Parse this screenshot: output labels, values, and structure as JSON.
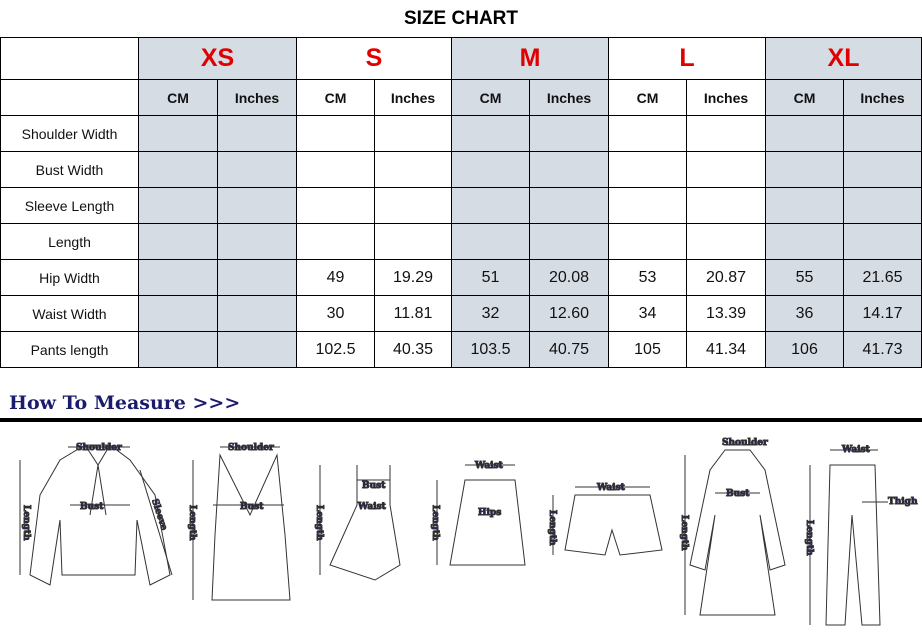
{
  "title": "SIZE CHART",
  "sizes": [
    "XS",
    "S",
    "M",
    "L",
    "XL"
  ],
  "units": [
    "CM",
    "Inches"
  ],
  "rows": [
    {
      "label": "Shoulder Width",
      "values": [
        "",
        "",
        "",
        "",
        "",
        "",
        "",
        "",
        "",
        ""
      ]
    },
    {
      "label": "Bust Width",
      "values": [
        "",
        "",
        "",
        "",
        "",
        "",
        "",
        "",
        "",
        ""
      ]
    },
    {
      "label": "Sleeve Length",
      "values": [
        "",
        "",
        "",
        "",
        "",
        "",
        "",
        "",
        "",
        ""
      ]
    },
    {
      "label": "Length",
      "values": [
        "",
        "",
        "",
        "",
        "",
        "",
        "",
        "",
        "",
        ""
      ]
    },
    {
      "label": "Hip Width",
      "values": [
        "",
        "",
        "49",
        "19.29",
        "51",
        "20.08",
        "53",
        "20.87",
        "55",
        "21.65"
      ]
    },
    {
      "label": "Waist Width",
      "values": [
        "",
        "",
        "30",
        "11.81",
        "32",
        "12.60",
        "34",
        "13.39",
        "36",
        "14.17"
      ]
    },
    {
      "label": "Pants length",
      "values": [
        "",
        "",
        "102.5",
        "40.35",
        "103.5",
        "40.75",
        "105",
        "41.34",
        "106",
        "41.73"
      ]
    }
  ],
  "colors": {
    "size_label": "#e00000",
    "shade": "#d6dce4",
    "howto": "#1b1b6b"
  },
  "how_to_measure": {
    "heading": "How To Measure >>>",
    "labels": {
      "shoulder": "Shoulder",
      "bust": "Bust",
      "sleeve": "Sleeve",
      "length": "Length",
      "waist": "Waist",
      "hips": "Hips",
      "thigh": "Thigh"
    }
  }
}
